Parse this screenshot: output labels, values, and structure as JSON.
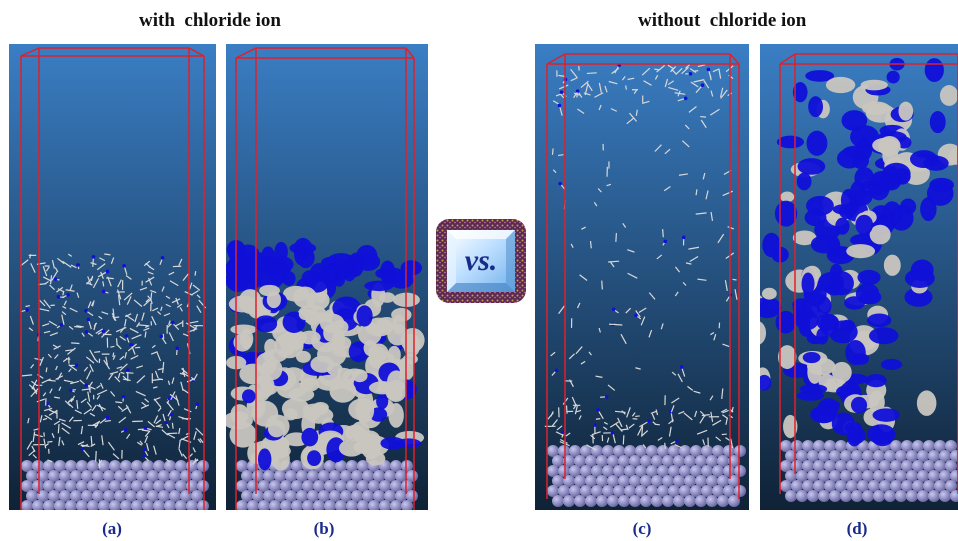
{
  "groups": {
    "left_title": "with  chloride ion",
    "right_title": "without  chloride ion"
  },
  "panels": [
    {
      "label": "(a)",
      "render": "ball-and-stick"
    },
    {
      "label": "(b)",
      "render": "surface"
    },
    {
      "label": "(c)",
      "render": "ball-and-stick"
    },
    {
      "label": "(d)",
      "render": "surface"
    }
  ],
  "vs": "vs.",
  "colors": {
    "box_edge": "#e0202a",
    "background_top": "#3a7ec4",
    "background_bottom": "#0f2236",
    "surface_blue": "#1010d8",
    "surface_gray": "#c9c6c0",
    "substrate_atom": "#6c6aa4"
  }
}
